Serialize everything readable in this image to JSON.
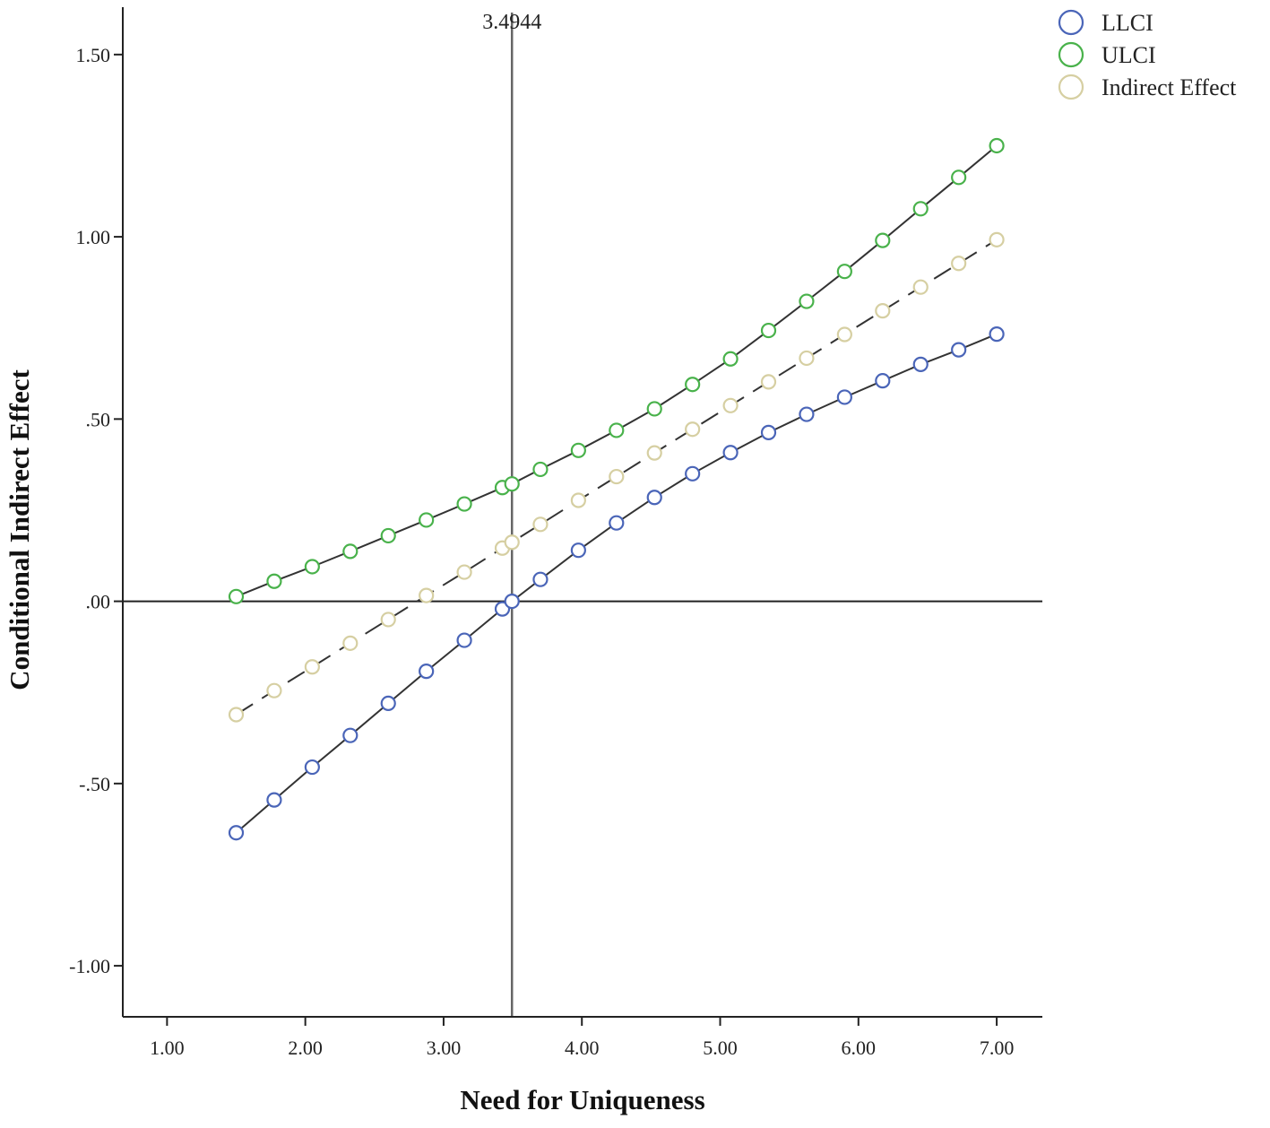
{
  "chart_data": {
    "type": "line",
    "xlabel": "Need for Uniqueness",
    "ylabel": "Conditional Indirect Effect",
    "xlim": [
      0.68,
      7.33
    ],
    "ylim": [
      -1.14,
      1.63
    ],
    "x_ticks": [
      1.0,
      2.0,
      3.0,
      4.0,
      5.0,
      6.0,
      7.0
    ],
    "x_tick_labels": [
      "1.00",
      "2.00",
      "3.00",
      "4.00",
      "5.00",
      "6.00",
      "7.00"
    ],
    "y_ticks": [
      -1.0,
      -0.5,
      0.0,
      0.5,
      1.0,
      1.5
    ],
    "y_tick_labels": [
      "-1.00",
      "-.50",
      ".00",
      ".50",
      "1.00",
      "1.50"
    ],
    "reference_lines": {
      "vertical": {
        "x": 3.4944,
        "label": "3.4944"
      },
      "horizontal": {
        "y": 0.0
      }
    },
    "legend_position": "top-right",
    "x": [
      1.5,
      1.775,
      2.05,
      2.325,
      2.6,
      2.875,
      3.15,
      3.425,
      3.4944,
      3.7,
      3.975,
      4.25,
      4.525,
      4.8,
      5.075,
      5.35,
      5.625,
      5.9,
      6.175,
      6.45,
      6.725,
      7.0
    ],
    "series": [
      {
        "name": "LLCI",
        "color": "#4a65b8",
        "line_style": "solid",
        "values": [
          -0.635,
          -0.545,
          -0.455,
          -0.368,
          -0.28,
          -0.192,
          -0.107,
          -0.021,
          0.0,
          0.06,
          0.14,
          0.215,
          0.285,
          0.35,
          0.408,
          0.463,
          0.513,
          0.56,
          0.605,
          0.65,
          0.69,
          0.733
        ]
      },
      {
        "name": "ULCI",
        "color": "#49b24b",
        "line_style": "solid",
        "values": [
          0.013,
          0.055,
          0.095,
          0.137,
          0.18,
          0.223,
          0.267,
          0.312,
          0.322,
          0.362,
          0.414,
          0.469,
          0.528,
          0.595,
          0.665,
          0.743,
          0.823,
          0.905,
          0.99,
          1.077,
          1.163,
          1.25
        ]
      },
      {
        "name": "Indirect Effect",
        "color": "#d6cfa2",
        "line_style": "dashed",
        "values": [
          -0.311,
          -0.245,
          -0.18,
          -0.115,
          -0.05,
          0.016,
          0.08,
          0.146,
          0.162,
          0.211,
          0.277,
          0.342,
          0.407,
          0.472,
          0.537,
          0.602,
          0.667,
          0.732,
          0.797,
          0.862,
          0.927,
          0.992
        ]
      }
    ]
  }
}
